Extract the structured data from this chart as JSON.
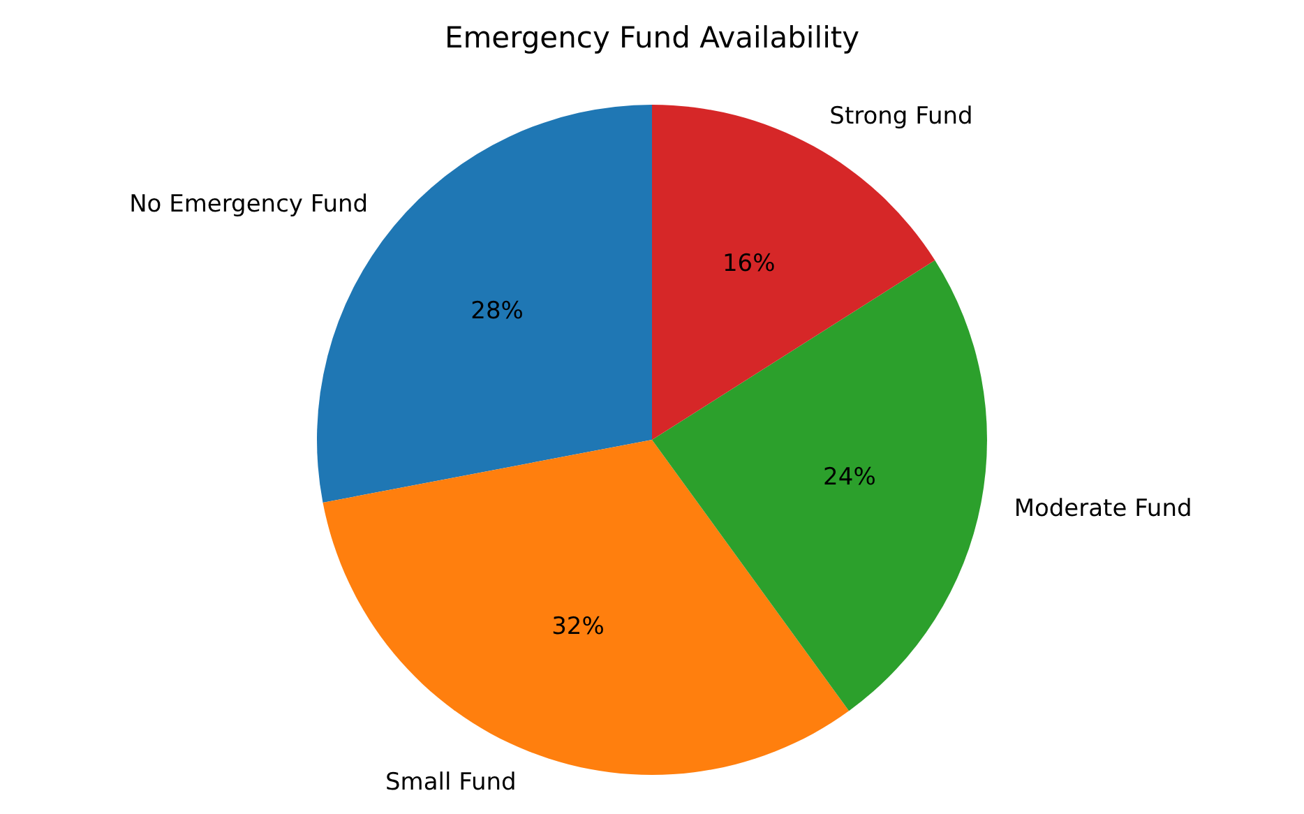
{
  "chart_data": {
    "type": "pie",
    "title": "Emergency Fund Availability",
    "categories": [
      "No Emergency Fund",
      "Small Fund",
      "Moderate Fund",
      "Strong Fund"
    ],
    "values": [
      28,
      32,
      24,
      16
    ],
    "colors": [
      "#1f77b4",
      "#ff7f0e",
      "#2ca02c",
      "#d62728"
    ],
    "value_labels": [
      "28%",
      "32%",
      "24%",
      "16%"
    ]
  }
}
